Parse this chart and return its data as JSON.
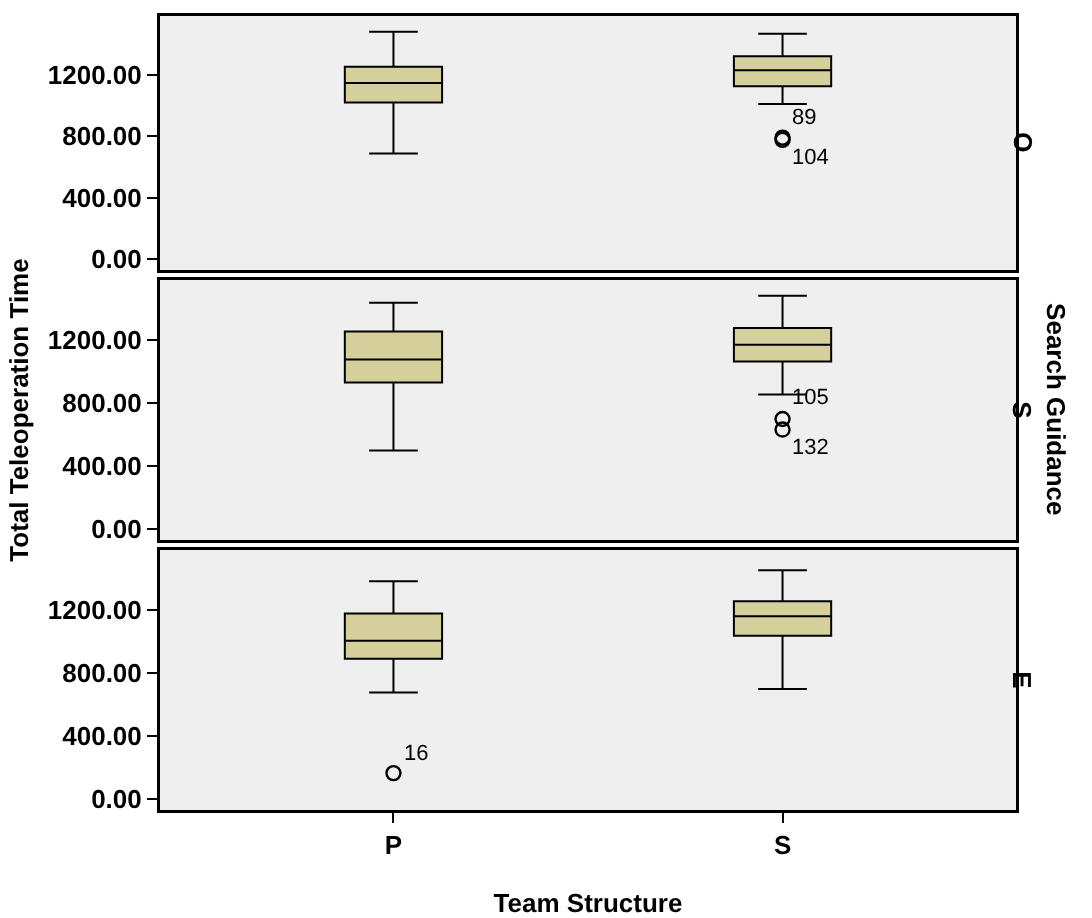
{
  "chart_data": [
    {
      "type": "box",
      "categories": [
        null,
        null
      ],
      "color": "#d5cf9b",
      "y2label": "O",
      "tick_labels": "y",
      "grid": false,
      "boxes": [
        {
          "low": 686,
          "q1": 1018,
          "median": 1145,
          "q3": 1250,
          "high": 1477
        },
        {
          "low": 1009,
          "q1": 1123,
          "median": 1227,
          "q3": 1318,
          "high": 1464,
          "outliers": [
            790,
            775
          ]
        }
      ],
      "ylim": [
        -70,
        1580
      ],
      "yticks": [
        {
          "value": 0,
          "label": "0.00"
        },
        {
          "value": 400,
          "label": "400.00"
        },
        {
          "value": 800,
          "label": "800.00"
        },
        {
          "value": 1200,
          "label": "1200.00"
        }
      ],
      "annotations": [
        "89",
        "104"
      ]
    },
    {
      "type": "box",
      "categories": [
        null,
        null
      ],
      "color": "#d5cf9b",
      "y2label": "S",
      "tick_labels": "y",
      "grid": false,
      "ylabel": "Total Teleoperation Time",
      "boxes": [
        {
          "low": 498,
          "q1": 929,
          "median": 1076,
          "q3": 1253,
          "high": 1436
        },
        {
          "low": 853,
          "q1": 1062,
          "median": 1169,
          "q3": 1276,
          "high": 1480,
          "outliers": [
            698,
            631
          ]
        }
      ],
      "ylim": [
        -70,
        1580
      ],
      "yticks": [
        {
          "value": 0,
          "label": "0.00"
        },
        {
          "value": 400,
          "label": "400.00"
        },
        {
          "value": 800,
          "label": "800.00"
        },
        {
          "value": 1200,
          "label": "1200.00"
        }
      ],
      "annotations": [
        "105",
        "132",
        "Search Guidance"
      ]
    },
    {
      "type": "box",
      "categories": [
        "P",
        "S"
      ],
      "color": "#d5cf9b",
      "y2label": "E",
      "grid": false,
      "xlabel": "Team Structure",
      "boxes": [
        {
          "low": 675,
          "q1": 890,
          "median": 1004,
          "q3": 1177,
          "high": 1382,
          "outliers": [
            164
          ]
        },
        {
          "low": 698,
          "q1": 1036,
          "median": 1159,
          "q3": 1255,
          "high": 1451
        }
      ],
      "ylim": [
        -70,
        1580
      ],
      "yticks": [
        {
          "value": 0,
          "label": "0.00"
        },
        {
          "value": 400,
          "label": "400.00"
        },
        {
          "value": 800,
          "label": "800.00"
        },
        {
          "value": 1200,
          "label": "1200.00"
        }
      ],
      "annotations": [
        "16"
      ]
    }
  ]
}
